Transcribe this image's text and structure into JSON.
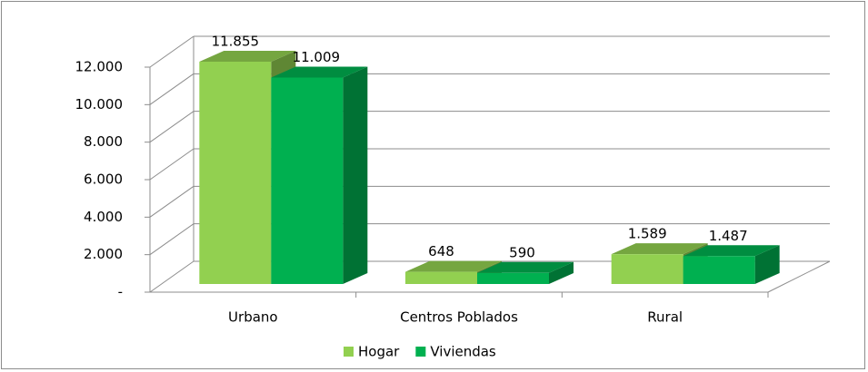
{
  "chart_data": {
    "type": "bar3d",
    "categories": [
      "Urbano",
      "Centros Poblados",
      "Rural"
    ],
    "series": [
      {
        "name": "Hogar",
        "color": "#92d050",
        "values": [
          11855,
          648,
          1589
        ],
        "value_labels": [
          "11.855",
          "648",
          "1.589"
        ]
      },
      {
        "name": "Viviendas",
        "color": "#00b050",
        "values": [
          11009,
          590,
          1487
        ],
        "value_labels": [
          "11.009",
          "590",
          "1.487"
        ]
      }
    ],
    "ylim": [
      0,
      12000
    ],
    "yticks": [
      {
        "value": 0,
        "label": "-"
      },
      {
        "value": 2000,
        "label": "2.000"
      },
      {
        "value": 4000,
        "label": "4.000"
      },
      {
        "value": 6000,
        "label": "6.000"
      },
      {
        "value": 8000,
        "label": "8.000"
      },
      {
        "value": 10000,
        "label": "10.000"
      },
      {
        "value": 12000,
        "label": "12.000"
      }
    ],
    "grid": true,
    "legend": "bottom"
  }
}
